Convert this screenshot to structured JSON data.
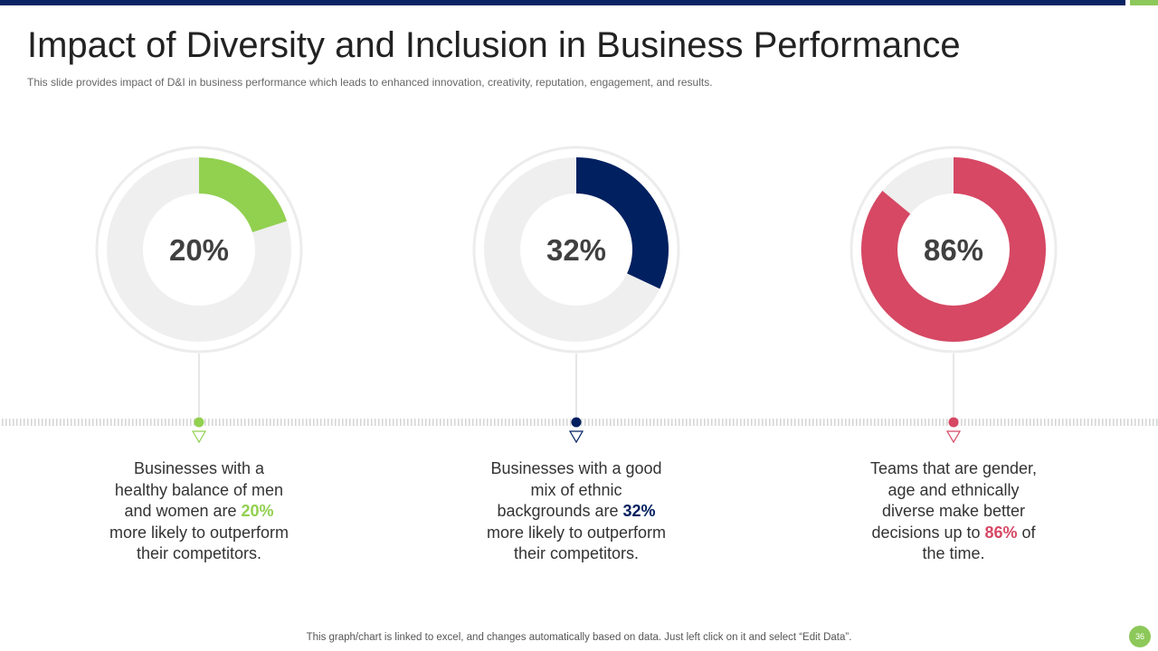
{
  "header": {
    "title": "Impact of Diversity and Inclusion in Business Performance",
    "subtitle": "This slide provides  impact of D&I in business performance  which leads to enhanced innovation,  creativity,  reputation,  engagement,  and results."
  },
  "colors": {
    "green": "#92d050",
    "navy": "#002060",
    "red": "#d64864",
    "track": "#efefef",
    "brand_bar": "#0a2463",
    "accent": "#8dc85a"
  },
  "chart_data": [
    {
      "type": "pie",
      "variant": "donut",
      "values": [
        20,
        80
      ],
      "center_label": "20%",
      "color": "green"
    },
    {
      "type": "pie",
      "variant": "donut",
      "values": [
        32,
        68
      ],
      "center_label": "32%",
      "color": "navy"
    },
    {
      "type": "pie",
      "variant": "donut",
      "values": [
        86,
        14
      ],
      "center_label": "86%",
      "color": "red"
    }
  ],
  "descriptions": [
    {
      "lines": [
        "Businesses with a",
        "healthy balance of men"
      ],
      "pre": "and women are ",
      "highlight": "20%",
      "post": "",
      "tail": [
        "more likely to outperform",
        "their competitors."
      ]
    },
    {
      "lines": [
        "Businesses with a good",
        "mix of ethnic"
      ],
      "pre": "backgrounds are ",
      "highlight": "32%",
      "post": "",
      "tail": [
        "more likely to outperform",
        "their competitors."
      ]
    },
    {
      "lines": [
        "Teams that are gender,",
        "age and ethnically",
        "diverse make better"
      ],
      "pre": "decisions up to ",
      "highlight": "86%",
      "post": "  of",
      "tail": [
        "the time."
      ]
    }
  ],
  "footer": {
    "note": "This graph/chart is linked to excel,  and changes automatically based on data. Just left click on it and select “Edit Data”.",
    "page_number": "36"
  }
}
